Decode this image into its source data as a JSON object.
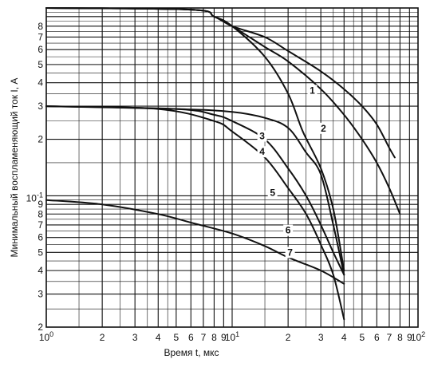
{
  "chart_data": {
    "type": "line",
    "title": "",
    "xlabel": "Время t, мкс",
    "ylabel": "Минимальный воспламеняющий ток I, А",
    "x_scale": "log",
    "y_scale": "log",
    "xlim": [
      1,
      100
    ],
    "ylim": [
      0.02,
      1
    ],
    "grid": true,
    "legend": "none",
    "line_color": "#111111",
    "x_ticks": [
      {
        "value": 1,
        "label": "10",
        "sup": "0"
      },
      {
        "value": 2,
        "label": "2",
        "sup": ""
      },
      {
        "value": 3,
        "label": "3",
        "sup": ""
      },
      {
        "value": 4,
        "label": "4",
        "sup": ""
      },
      {
        "value": 5,
        "label": "5",
        "sup": ""
      },
      {
        "value": 6,
        "label": "6",
        "sup": ""
      },
      {
        "value": 7,
        "label": "7",
        "sup": ""
      },
      {
        "value": 8,
        "label": "8",
        "sup": ""
      },
      {
        "value": 9,
        "label": "9",
        "sup": ""
      },
      {
        "value": 10,
        "label": "10",
        "sup": "1"
      },
      {
        "value": 20,
        "label": "2",
        "sup": ""
      },
      {
        "value": 30,
        "label": "3",
        "sup": ""
      },
      {
        "value": 40,
        "label": "4",
        "sup": ""
      },
      {
        "value": 50,
        "label": "5",
        "sup": ""
      },
      {
        "value": 60,
        "label": "6",
        "sup": ""
      },
      {
        "value": 70,
        "label": "7",
        "sup": ""
      },
      {
        "value": 80,
        "label": "8",
        "sup": ""
      },
      {
        "value": 90,
        "label": "9",
        "sup": ""
      },
      {
        "value": 100,
        "label": "10",
        "sup": "2"
      }
    ],
    "y_ticks": [
      {
        "value": 0.02,
        "label": "2",
        "sup": ""
      },
      {
        "value": 0.03,
        "label": "3",
        "sup": ""
      },
      {
        "value": 0.04,
        "label": "4",
        "sup": ""
      },
      {
        "value": 0.05,
        "label": "5",
        "sup": ""
      },
      {
        "value": 0.06,
        "label": "6",
        "sup": ""
      },
      {
        "value": 0.07,
        "label": "7",
        "sup": ""
      },
      {
        "value": 0.08,
        "label": "8",
        "sup": ""
      },
      {
        "value": 0.09,
        "label": "9",
        "sup": ""
      },
      {
        "value": 0.1,
        "label": "10",
        "sup": "-1"
      },
      {
        "value": 0.2,
        "label": "2",
        "sup": ""
      },
      {
        "value": 0.3,
        "label": "3",
        "sup": ""
      },
      {
        "value": 0.4,
        "label": "4",
        "sup": ""
      },
      {
        "value": 0.5,
        "label": "5",
        "sup": ""
      },
      {
        "value": 0.6,
        "label": "6",
        "sup": ""
      },
      {
        "value": 0.7,
        "label": "7",
        "sup": ""
      },
      {
        "value": 0.8,
        "label": "8",
        "sup": ""
      }
    ],
    "series": [
      {
        "label": "1",
        "label_at": [
          27,
          0.35
        ],
        "points": [
          [
            1,
            1.0
          ],
          [
            6,
            0.98
          ],
          [
            8,
            0.9
          ],
          [
            10,
            0.8
          ],
          [
            15,
            0.7
          ],
          [
            20,
            0.59
          ],
          [
            30,
            0.46
          ],
          [
            40,
            0.37
          ],
          [
            50,
            0.3
          ],
          [
            60,
            0.24
          ],
          [
            70,
            0.18
          ],
          [
            75,
            0.16
          ]
        ]
      },
      {
        "label": "2",
        "label_at": [
          31,
          0.22
        ],
        "points": [
          [
            1,
            1.0
          ],
          [
            6,
            0.98
          ],
          [
            8,
            0.9
          ],
          [
            10,
            0.8
          ],
          [
            15,
            0.62
          ],
          [
            20,
            0.52
          ],
          [
            30,
            0.37
          ],
          [
            40,
            0.27
          ],
          [
            50,
            0.2
          ],
          [
            60,
            0.15
          ],
          [
            70,
            0.11
          ],
          [
            80,
            0.08
          ]
        ]
      },
      {
        "label": "3",
        "label_at": [
          14.5,
          0.2
        ],
        "points": [
          [
            1,
            1.0
          ],
          [
            6,
            0.98
          ],
          [
            8,
            0.9
          ],
          [
            10,
            0.8
          ],
          [
            15,
            0.55
          ],
          [
            20,
            0.35
          ],
          [
            24,
            0.22
          ],
          [
            30,
            0.14
          ],
          [
            35,
            0.085
          ],
          [
            40,
            0.04
          ]
        ]
      },
      {
        "label": "4",
        "label_at": [
          14.5,
          0.165
        ],
        "points": [
          [
            1,
            0.3
          ],
          [
            5,
            0.29
          ],
          [
            10,
            0.28
          ],
          [
            15,
            0.26
          ],
          [
            20,
            0.23
          ],
          [
            25,
            0.17
          ],
          [
            30,
            0.13
          ],
          [
            35,
            0.07
          ],
          [
            40,
            0.038
          ]
        ]
      },
      {
        "label": "5",
        "label_at": [
          16.5,
          0.1
        ],
        "points": [
          [
            1,
            0.3
          ],
          [
            5,
            0.29
          ],
          [
            8,
            0.27
          ],
          [
            10,
            0.25
          ],
          [
            15,
            0.2
          ],
          [
            20,
            0.14
          ],
          [
            25,
            0.1
          ],
          [
            30,
            0.07
          ],
          [
            35,
            0.05
          ],
          [
            40,
            0.038
          ]
        ]
      },
      {
        "label": "6",
        "label_at": [
          20,
          0.063
        ],
        "points": [
          [
            1,
            0.3
          ],
          [
            4,
            0.29
          ],
          [
            8,
            0.25
          ],
          [
            10,
            0.22
          ],
          [
            15,
            0.16
          ],
          [
            20,
            0.11
          ],
          [
            25,
            0.08
          ],
          [
            30,
            0.055
          ],
          [
            35,
            0.038
          ],
          [
            40,
            0.022
          ]
        ]
      },
      {
        "label": "7",
        "label_at": [
          20.5,
          0.048
        ],
        "points": [
          [
            1,
            0.095
          ],
          [
            2,
            0.09
          ],
          [
            4,
            0.08
          ],
          [
            6,
            0.072
          ],
          [
            10,
            0.063
          ],
          [
            15,
            0.054
          ],
          [
            20,
            0.047
          ],
          [
            30,
            0.04
          ],
          [
            40,
            0.034
          ]
        ]
      }
    ]
  }
}
